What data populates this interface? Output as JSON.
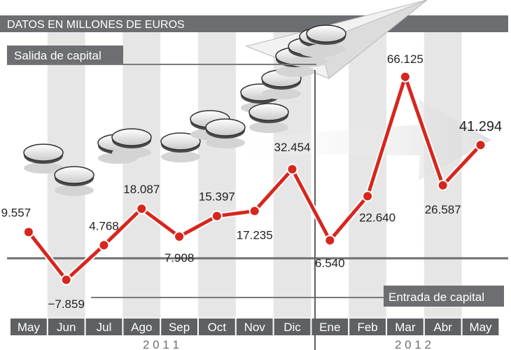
{
  "header": {
    "title": "DATOS EN MILLONES DE EUROS"
  },
  "labels": {
    "outflow": "Salida de capital",
    "inflow": "Entrada de capital"
  },
  "years": [
    "2 0 1 1",
    "2 0 1 2"
  ],
  "colors": {
    "line": "#d7261e",
    "header_bg": "#6d6e71",
    "stripe": "#e6e6e6",
    "month_bar": "#5f6062"
  },
  "chart_data": {
    "type": "line",
    "title": "DATOS EN MILLONES DE EUROS",
    "categories": [
      "May",
      "Jun",
      "Jul",
      "Ago",
      "Sep",
      "Oct",
      "Nov",
      "Dic",
      "Ene",
      "Feb",
      "Mar",
      "Abr",
      "May"
    ],
    "years": [
      {
        "label": "2 0 1 1",
        "months": [
          "May",
          "Jun",
          "Jul",
          "Ago",
          "Sep",
          "Oct",
          "Nov",
          "Dic"
        ]
      },
      {
        "label": "2 0 1 2",
        "months": [
          "Ene",
          "Feb",
          "Mar",
          "Abr",
          "May"
        ]
      }
    ],
    "values": [
      9557,
      -7859,
      4768,
      18087,
      7908,
      15397,
      17235,
      32454,
      6540,
      22640,
      66125,
      26587,
      41294
    ],
    "value_labels": [
      "9.557",
      "−7.859",
      "4.768",
      "18.087",
      "7.908",
      "15.397",
      "17.235",
      "32.454",
      "6.540",
      "22.640",
      "66.125",
      "26.587",
      "41.294"
    ],
    "ylim": [
      -12000,
      76000
    ],
    "annotations": {
      "above_zero": "Salida de capital",
      "below_zero": "Entrada de capital"
    },
    "grid": true
  }
}
